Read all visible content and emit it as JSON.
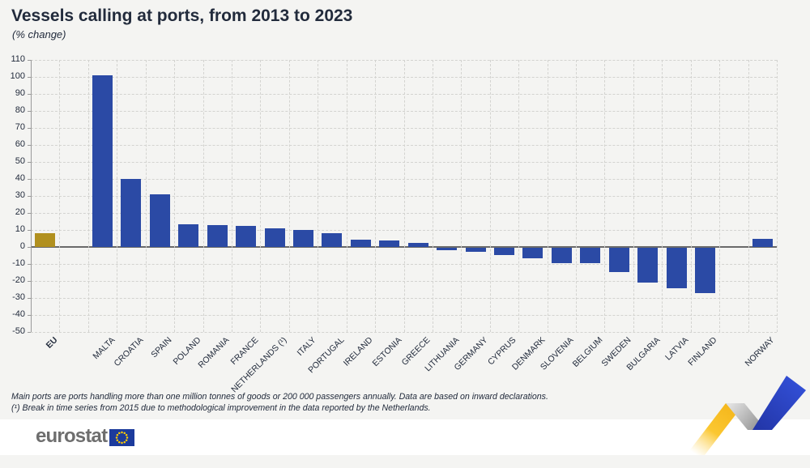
{
  "header": {
    "title": "Vessels calling at ports, from 2013 to 2023",
    "subtitle": "(% change)"
  },
  "chart_data": {
    "type": "bar",
    "title": "Vessels calling at ports, from 2013 to 2023",
    "subtitle": "(% change)",
    "unit": "% change 2013-2023",
    "ylim": [
      -50,
      110
    ],
    "ytick_step": 10,
    "grid": "dashed",
    "legend": "none",
    "colors": {
      "eu_bar": "#b1901f",
      "country_bar": "#2b4aa5"
    },
    "bars": [
      {
        "label": "EU",
        "value": 8,
        "type": "eu",
        "gap_before": false
      },
      {
        "label": "MALTA",
        "value": 101,
        "type": "country",
        "gap_before": true
      },
      {
        "label": "CROATIA",
        "value": 40,
        "type": "country",
        "gap_before": false
      },
      {
        "label": "SPAIN",
        "value": 31,
        "type": "country",
        "gap_before": false
      },
      {
        "label": "POLAND",
        "value": 13.5,
        "type": "country",
        "gap_before": false
      },
      {
        "label": "ROMANIA",
        "value": 13,
        "type": "country",
        "gap_before": false
      },
      {
        "label": "FRANCE",
        "value": 12.5,
        "type": "country",
        "gap_before": false
      },
      {
        "label": "NETHERLANDS (¹)",
        "value": 11,
        "type": "country",
        "gap_before": false
      },
      {
        "label": "ITALY",
        "value": 10,
        "type": "country",
        "gap_before": false
      },
      {
        "label": "PORTUGAL",
        "value": 8,
        "type": "country",
        "gap_before": false
      },
      {
        "label": "IRELAND",
        "value": 4.5,
        "type": "country",
        "gap_before": false
      },
      {
        "label": "ESTONIA",
        "value": 4,
        "type": "country",
        "gap_before": false
      },
      {
        "label": "GREECE",
        "value": 2.5,
        "type": "country",
        "gap_before": false
      },
      {
        "label": "LITHUANIA",
        "value": -1.5,
        "type": "country",
        "gap_before": false
      },
      {
        "label": "GERMANY",
        "value": -2.5,
        "type": "country",
        "gap_before": false
      },
      {
        "label": "CYPRUS",
        "value": -4.5,
        "type": "country",
        "gap_before": false
      },
      {
        "label": "DENMARK",
        "value": -6,
        "type": "country",
        "gap_before": false
      },
      {
        "label": "SLOVENIA",
        "value": -9,
        "type": "country",
        "gap_before": false
      },
      {
        "label": "BELGIUM",
        "value": -9,
        "type": "country",
        "gap_before": false
      },
      {
        "label": "SWEDEN",
        "value": -14.5,
        "type": "country",
        "gap_before": false
      },
      {
        "label": "BULGARIA",
        "value": -20.5,
        "type": "country",
        "gap_before": false
      },
      {
        "label": "LATVIA",
        "value": -24,
        "type": "country",
        "gap_before": false
      },
      {
        "label": "FINLAND",
        "value": -26.5,
        "type": "country",
        "gap_before": false
      },
      {
        "label": "NORWAY",
        "value": 5,
        "type": "country",
        "gap_before": true
      }
    ]
  },
  "footnotes": {
    "line1": "Main ports are ports handling more than one million tonnes of goods or 200 000 passengers annually. Data are based on inward declarations.",
    "line2": "(¹) Break in time series from 2015 due to methodological improvement in the data reported by the Netherlands."
  },
  "footer": {
    "logo_text": "eurostat"
  },
  "decoration": {
    "ribbon_yellow": "#f8bd1f",
    "ribbon_gray": "#a8a8a8",
    "ribbon_blue": "#2c42c4",
    "flag_blue": "#1c3b9c",
    "flag_star_yellow": "#ffcc00"
  }
}
